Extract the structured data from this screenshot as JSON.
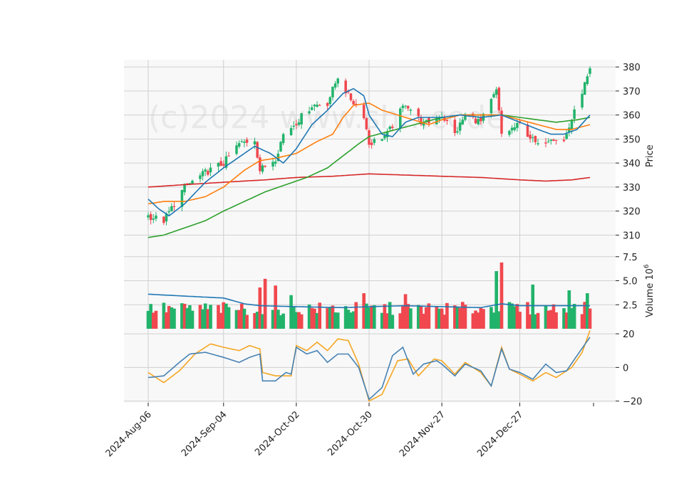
{
  "watermark": "(c)2024 www.sh...code",
  "colors": {
    "up": "#22b36b",
    "down": "#f0484e",
    "ma5": "#1f77b4",
    "ma10": "#ff7f0e",
    "ma20": "#2ca02c",
    "ma60": "#d62728",
    "macd": "#4682b4",
    "signal": "#f5a623",
    "vol_ma": "#1f77b4",
    "grid": "#d0d0d0",
    "panel": "#f8f8f8"
  },
  "chart_data": [
    {
      "type": "candlestick",
      "panel": "price",
      "ylabel": "Price",
      "ylim": [
        303,
        383
      ],
      "yticks": [
        310,
        320,
        330,
        340,
        350,
        360,
        370,
        380
      ],
      "x_start": "2024-08-06",
      "x_end": "2025-01-23",
      "xtick_labels": [
        "2024-Aug-06",
        "2024-Sep-04",
        "2024-Oct-02",
        "2024-Oct-30",
        "2024-Nov-27",
        "2024-Dec-27"
      ],
      "xtick_dates": [
        "2024-08-06",
        "2024-09-04",
        "2024-10-02",
        "2024-10-30",
        "2024-11-27",
        "2024-12-27"
      ],
      "grid": true,
      "series": [
        {
          "name": "candles",
          "anchors": [
            [
              "2024-08-06",
              318
            ],
            [
              "2024-08-12",
              316
            ],
            [
              "2024-08-20",
              330
            ],
            [
              "2024-08-28",
              336
            ],
            [
              "2024-09-04",
              340
            ],
            [
              "2024-09-10",
              348
            ],
            [
              "2024-09-16",
              350
            ],
            [
              "2024-09-18",
              337
            ],
            [
              "2024-09-24",
              342
            ],
            [
              "2024-09-27",
              352
            ],
            [
              "2024-10-02",
              357
            ],
            [
              "2024-10-08",
              364
            ],
            [
              "2024-10-14",
              365
            ],
            [
              "2024-10-18",
              376
            ],
            [
              "2024-10-22",
              368
            ],
            [
              "2024-10-28",
              360
            ],
            [
              "2024-10-30",
              348
            ],
            [
              "2024-11-06",
              352
            ],
            [
              "2024-11-13",
              365
            ],
            [
              "2024-11-20",
              356
            ],
            [
              "2024-11-27",
              360
            ],
            [
              "2024-12-02",
              352
            ],
            [
              "2024-12-06",
              360
            ],
            [
              "2024-12-12",
              357
            ],
            [
              "2024-12-18",
              370
            ],
            [
              "2024-12-20",
              352
            ],
            [
              "2024-12-27",
              356
            ],
            [
              "2025-01-03",
              347
            ],
            [
              "2025-01-08",
              351
            ],
            [
              "2025-01-13",
              349
            ],
            [
              "2025-01-16",
              358
            ],
            [
              "2025-01-20",
              370
            ],
            [
              "2025-01-23",
              378
            ]
          ]
        },
        {
          "name": "ma5",
          "points": [
            [
              "2024-08-06",
              325
            ],
            [
              "2024-08-10",
              321
            ],
            [
              "2024-08-14",
              318
            ],
            [
              "2024-08-20",
              323
            ],
            [
              "2024-08-28",
              332
            ],
            [
              "2024-09-04",
              338
            ],
            [
              "2024-09-12",
              344
            ],
            [
              "2024-09-16",
              347
            ],
            [
              "2024-09-22",
              344
            ],
            [
              "2024-09-27",
              340
            ],
            [
              "2024-10-02",
              346
            ],
            [
              "2024-10-08",
              356
            ],
            [
              "2024-10-14",
              362
            ],
            [
              "2024-10-20",
              369
            ],
            [
              "2024-10-24",
              371
            ],
            [
              "2024-10-28",
              368
            ],
            [
              "2024-10-30",
              360
            ],
            [
              "2024-11-04",
              352
            ],
            [
              "2024-11-08",
              351
            ],
            [
              "2024-11-13",
              357
            ],
            [
              "2024-11-18",
              359
            ],
            [
              "2024-11-22",
              359
            ],
            [
              "2024-11-27",
              359
            ],
            [
              "2024-12-04",
              360
            ],
            [
              "2024-12-12",
              359
            ],
            [
              "2024-12-20",
              360
            ],
            [
              "2024-12-27",
              357
            ],
            [
              "2025-01-03",
              354
            ],
            [
              "2025-01-08",
              352
            ],
            [
              "2025-01-13",
              352
            ],
            [
              "2025-01-18",
              354
            ],
            [
              "2025-01-23",
              360
            ]
          ]
        },
        {
          "name": "ma10",
          "points": [
            [
              "2024-08-06",
              323
            ],
            [
              "2024-08-12",
              324
            ],
            [
              "2024-08-20",
              324
            ],
            [
              "2024-08-28",
              326
            ],
            [
              "2024-09-04",
              330
            ],
            [
              "2024-09-12",
              337
            ],
            [
              "2024-09-18",
              341
            ],
            [
              "2024-09-24",
              342
            ],
            [
              "2024-10-02",
              344
            ],
            [
              "2024-10-10",
              349
            ],
            [
              "2024-10-16",
              352
            ],
            [
              "2024-10-20",
              359
            ],
            [
              "2024-10-24",
              364
            ],
            [
              "2024-10-30",
              365
            ],
            [
              "2024-11-04",
              362
            ],
            [
              "2024-11-10",
              360
            ],
            [
              "2024-11-16",
              358
            ],
            [
              "2024-11-22",
              356
            ],
            [
              "2024-11-27",
              358
            ],
            [
              "2024-12-04",
              360
            ],
            [
              "2024-12-12",
              360
            ],
            [
              "2024-12-20",
              360
            ],
            [
              "2024-12-27",
              358
            ],
            [
              "2025-01-03",
              356
            ],
            [
              "2025-01-10",
              354
            ],
            [
              "2025-01-16",
              354
            ],
            [
              "2025-01-23",
              356
            ]
          ]
        },
        {
          "name": "ma20",
          "points": [
            [
              "2024-08-06",
              309
            ],
            [
              "2024-08-12",
              310
            ],
            [
              "2024-08-20",
              313
            ],
            [
              "2024-08-28",
              316
            ],
            [
              "2024-09-04",
              320
            ],
            [
              "2024-09-12",
              324
            ],
            [
              "2024-09-20",
              328
            ],
            [
              "2024-09-28",
              331
            ],
            [
              "2024-10-06",
              334
            ],
            [
              "2024-10-14",
              338
            ],
            [
              "2024-10-20",
              343
            ],
            [
              "2024-10-26",
              348
            ],
            [
              "2024-10-30",
              351
            ],
            [
              "2024-11-06",
              353
            ],
            [
              "2024-11-13",
              355
            ],
            [
              "2024-11-20",
              357
            ],
            [
              "2024-11-27",
              359
            ],
            [
              "2024-12-04",
              360
            ],
            [
              "2024-12-12",
              360
            ],
            [
              "2024-12-20",
              360
            ],
            [
              "2024-12-27",
              359
            ],
            [
              "2025-01-03",
              358
            ],
            [
              "2025-01-10",
              357
            ],
            [
              "2025-01-18",
              358
            ],
            [
              "2025-01-23",
              359
            ]
          ]
        },
        {
          "name": "ma60",
          "points": [
            [
              "2024-08-06",
              330
            ],
            [
              "2024-08-20",
              331
            ],
            [
              "2024-09-04",
              332
            ],
            [
              "2024-09-20",
              333
            ],
            [
              "2024-10-02",
              334
            ],
            [
              "2024-10-16",
              334.5
            ],
            [
              "2024-10-30",
              335.5
            ],
            [
              "2024-11-13",
              335
            ],
            [
              "2024-11-27",
              334.5
            ],
            [
              "2024-12-12",
              334
            ],
            [
              "2024-12-27",
              333
            ],
            [
              "2025-01-06",
              332.5
            ],
            [
              "2025-01-16",
              333
            ],
            [
              "2025-01-23",
              334
            ]
          ]
        }
      ]
    },
    {
      "type": "bar",
      "panel": "volume",
      "ylabel": "Volume",
      "ylabel_exponent": "10",
      "ylabel_power": "6",
      "ylim": [
        0,
        8
      ],
      "yticks": [
        2.5,
        5.0,
        7.5
      ],
      "ytick_labels": [
        "2.5",
        "5.0",
        "7.5"
      ],
      "grid": true,
      "spikes": [
        [
          "2024-09-18",
          4.3
        ],
        [
          "2024-09-20",
          5.2
        ],
        [
          "2024-09-24",
          4.5
        ],
        [
          "2024-09-30",
          3.5
        ],
        [
          "2024-10-28",
          3.7
        ],
        [
          "2024-11-13",
          3.6
        ],
        [
          "2024-12-18",
          6.0
        ],
        [
          "2024-12-20",
          6.9
        ],
        [
          "2025-01-01",
          4.6
        ],
        [
          "2025-01-15",
          4.0
        ],
        [
          "2025-01-22",
          3.7
        ]
      ],
      "series": [
        {
          "name": "vol_ma",
          "points": [
            [
              "2024-08-06",
              3.6
            ],
            [
              "2024-08-20",
              3.4
            ],
            [
              "2024-09-04",
              3.2
            ],
            [
              "2024-09-12",
              2.6
            ],
            [
              "2024-09-18",
              2.4
            ],
            [
              "2024-10-02",
              2.3
            ],
            [
              "2024-10-20",
              2.2
            ],
            [
              "2024-10-30",
              2.3
            ],
            [
              "2024-11-13",
              2.4
            ],
            [
              "2024-11-27",
              2.3
            ],
            [
              "2024-12-12",
              2.2
            ],
            [
              "2024-12-20",
              2.6
            ],
            [
              "2024-12-27",
              2.4
            ],
            [
              "2025-01-10",
              2.4
            ],
            [
              "2025-01-23",
              2.4
            ]
          ]
        }
      ]
    },
    {
      "type": "line",
      "panel": "macd",
      "ylim": [
        -21,
        23
      ],
      "yticks": [
        -20,
        0,
        20
      ],
      "ytick_labels": [
        "−20",
        "0",
        "20"
      ],
      "grid": true,
      "series": [
        {
          "name": "macd",
          "points": [
            [
              "2024-08-06",
              -6
            ],
            [
              "2024-08-12",
              -5
            ],
            [
              "2024-08-18",
              3
            ],
            [
              "2024-08-22",
              8
            ],
            [
              "2024-08-28",
              9
            ],
            [
              "2024-09-04",
              6
            ],
            [
              "2024-09-10",
              3
            ],
            [
              "2024-09-14",
              6
            ],
            [
              "2024-09-18",
              8
            ],
            [
              "2024-09-19",
              -8
            ],
            [
              "2024-09-24",
              -8
            ],
            [
              "2024-09-28",
              -3
            ],
            [
              "2024-09-30",
              -4
            ],
            [
              "2024-10-02",
              12
            ],
            [
              "2024-10-06",
              8
            ],
            [
              "2024-10-10",
              10
            ],
            [
              "2024-10-14",
              3
            ],
            [
              "2024-10-18",
              8
            ],
            [
              "2024-10-22",
              8
            ],
            [
              "2024-10-26",
              0
            ],
            [
              "2024-10-30",
              -19
            ],
            [
              "2024-11-04",
              -12
            ],
            [
              "2024-11-08",
              7
            ],
            [
              "2024-11-12",
              12
            ],
            [
              "2024-11-16",
              -4
            ],
            [
              "2024-11-20",
              2
            ],
            [
              "2024-11-25",
              4
            ],
            [
              "2024-11-27",
              2
            ],
            [
              "2024-12-02",
              -5
            ],
            [
              "2024-12-06",
              2
            ],
            [
              "2024-12-12",
              -2
            ],
            [
              "2024-12-16",
              -11
            ],
            [
              "2024-12-20",
              11
            ],
            [
              "2024-12-23",
              -1
            ],
            [
              "2024-12-27",
              -3
            ],
            [
              "2025-01-01",
              -7
            ],
            [
              "2025-01-06",
              2
            ],
            [
              "2025-01-10",
              -3
            ],
            [
              "2025-01-14",
              -2
            ],
            [
              "2025-01-18",
              7
            ],
            [
              "2025-01-23",
              18
            ]
          ]
        },
        {
          "name": "signal",
          "points": [
            [
              "2024-08-06",
              -3
            ],
            [
              "2024-08-12",
              -9
            ],
            [
              "2024-08-18",
              -2
            ],
            [
              "2024-08-24",
              8
            ],
            [
              "2024-08-30",
              14
            ],
            [
              "2024-09-04",
              12
            ],
            [
              "2024-09-10",
              10
            ],
            [
              "2024-09-14",
              13
            ],
            [
              "2024-09-18",
              11
            ],
            [
              "2024-09-19",
              -3
            ],
            [
              "2024-09-24",
              -5
            ],
            [
              "2024-09-30",
              -5
            ],
            [
              "2024-10-02",
              13
            ],
            [
              "2024-10-06",
              10
            ],
            [
              "2024-10-10",
              15
            ],
            [
              "2024-10-14",
              10
            ],
            [
              "2024-10-18",
              17
            ],
            [
              "2024-10-22",
              16
            ],
            [
              "2024-10-26",
              2
            ],
            [
              "2024-10-30",
              -20
            ],
            [
              "2024-11-04",
              -16
            ],
            [
              "2024-11-10",
              4
            ],
            [
              "2024-11-14",
              5
            ],
            [
              "2024-11-18",
              -5
            ],
            [
              "2024-11-24",
              5
            ],
            [
              "2024-11-27",
              4
            ],
            [
              "2024-12-02",
              -4
            ],
            [
              "2024-12-06",
              3
            ],
            [
              "2024-12-12",
              -3
            ],
            [
              "2024-12-16",
              -11
            ],
            [
              "2024-12-20",
              12
            ],
            [
              "2024-12-23",
              -1
            ],
            [
              "2024-12-27",
              -4
            ],
            [
              "2025-01-01",
              -8
            ],
            [
              "2025-01-06",
              -3
            ],
            [
              "2025-01-10",
              -6
            ],
            [
              "2025-01-16",
              0
            ],
            [
              "2025-01-20",
              9
            ],
            [
              "2025-01-23",
              22
            ]
          ]
        }
      ]
    }
  ]
}
